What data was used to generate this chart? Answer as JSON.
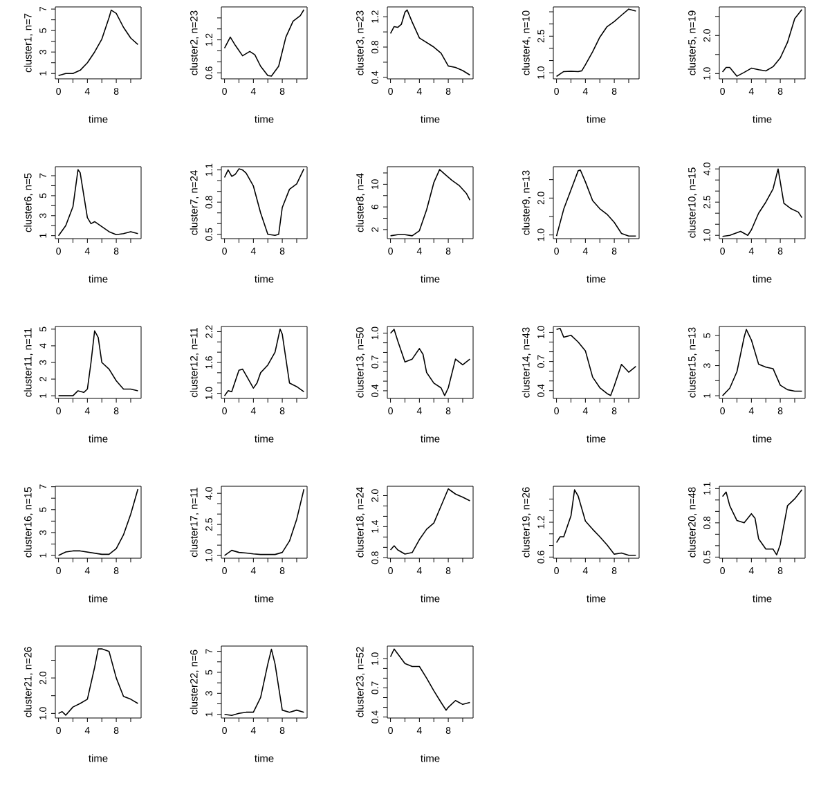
{
  "chart_data": [
    {
      "type": "line",
      "xlabel": "time",
      "ylabel": "cluster1, n=7",
      "color": "#000000",
      "xlim": [
        -0.44,
        11.44
      ],
      "ylim": [
        0.5,
        7.2
      ],
      "xticks": [
        0,
        {
          "value": 2,
          "label": null
        },
        4,
        {
          "value": 6,
          "label": null
        },
        8,
        {
          "value": 10,
          "label": null
        }
      ],
      "yticks": [
        1,
        {
          "value": 2,
          "label": null
        },
        3,
        {
          "value": 4,
          "label": null
        },
        5,
        {
          "value": 6,
          "label": null
        },
        7
      ],
      "x": [
        0,
        1,
        2,
        3,
        4,
        5,
        6,
        7,
        7.3,
        8,
        9,
        10,
        11
      ],
      "values": [
        0.8,
        1.0,
        1.0,
        1.3,
        2.0,
        3.0,
        4.2,
        6.2,
        6.9,
        6.6,
        5.3,
        4.3,
        3.7
      ]
    },
    {
      "type": "line",
      "xlabel": "time",
      "ylabel": "cluster2, n=23",
      "color": "#000000",
      "xlim": [
        -0.44,
        11.44
      ],
      "ylim": [
        0.49,
        1.8
      ],
      "xticks": [
        0,
        {
          "value": 2,
          "label": null
        },
        4,
        {
          "value": 6,
          "label": null
        },
        8,
        {
          "value": 10,
          "label": null
        }
      ],
      "yticks": [
        0.6,
        {
          "value": 0.8,
          "label": null
        },
        {
          "value": 1.0,
          "label": null
        },
        1.2,
        {
          "value": 1.4,
          "label": null
        },
        {
          "value": 1.6,
          "label": null
        }
      ],
      "x": [
        0,
        0.8,
        1.5,
        2.5,
        3.5,
        4.2,
        5,
        6,
        6.5,
        7.5,
        8.5,
        9.5,
        10.5,
        11
      ],
      "values": [
        1.05,
        1.25,
        1.1,
        0.91,
        0.99,
        0.93,
        0.72,
        0.55,
        0.54,
        0.72,
        1.25,
        1.54,
        1.64,
        1.75
      ]
    },
    {
      "type": "line",
      "xlabel": "time",
      "ylabel": "cluster3, n=23",
      "color": "#000000",
      "xlim": [
        -0.44,
        11.44
      ],
      "ylim": [
        0.38,
        1.33
      ],
      "xticks": [
        0,
        {
          "value": 2,
          "label": null
        },
        4,
        {
          "value": 6,
          "label": null
        },
        8,
        {
          "value": 10,
          "label": null
        }
      ],
      "yticks": [
        0.4,
        {
          "value": 0.6,
          "label": null
        },
        0.8,
        {
          "value": 1.0,
          "label": null
        },
        1.2
      ],
      "x": [
        0,
        0.5,
        1,
        1.5,
        2,
        2.3,
        3,
        4,
        5,
        6,
        7,
        8,
        9,
        10,
        11
      ],
      "values": [
        0.98,
        1.07,
        1.06,
        1.1,
        1.26,
        1.29,
        1.13,
        0.92,
        0.86,
        0.8,
        0.72,
        0.55,
        0.53,
        0.49,
        0.43
      ]
    },
    {
      "type": "line",
      "xlabel": "time",
      "ylabel": "cluster4, n=10",
      "color": "#000000",
      "xlim": [
        -0.44,
        11.44
      ],
      "ylim": [
        0.75,
        3.7
      ],
      "xticks": [
        0,
        {
          "value": 2,
          "label": null
        },
        4,
        {
          "value": 6,
          "label": null
        },
        8,
        {
          "value": 10,
          "label": null
        }
      ],
      "yticks": [
        {
          "value": 1,
          "label": "1.0"
        },
        {
          "value": 1.5,
          "label": null
        },
        {
          "value": 2.0,
          "label": null
        },
        2.5,
        {
          "value": 3.0,
          "label": null
        },
        {
          "value": 3.5,
          "label": null
        }
      ],
      "x": [
        0,
        0.5,
        1,
        2,
        3,
        3.5,
        4,
        5,
        6,
        7,
        8,
        9,
        10,
        11
      ],
      "values": [
        0.85,
        0.95,
        1.05,
        1.06,
        1.05,
        1.08,
        1.33,
        1.86,
        2.46,
        2.89,
        3.1,
        3.36,
        3.61,
        3.53
      ]
    },
    {
      "type": "line",
      "xlabel": "time",
      "ylabel": "cluster5, n=19",
      "color": "#000000",
      "xlim": [
        -0.44,
        11.44
      ],
      "ylim": [
        0.86,
        2.75
      ],
      "xticks": [
        0,
        {
          "value": 2,
          "label": null
        },
        4,
        {
          "value": 6,
          "label": null
        },
        8,
        {
          "value": 10,
          "label": null
        }
      ],
      "yticks": [
        {
          "value": 1,
          "label": "1.0"
        },
        {
          "value": 1.5,
          "label": null
        },
        {
          "value": 2,
          "label": "2.0"
        },
        {
          "value": 2.5,
          "label": null
        }
      ],
      "x": [
        0,
        0.5,
        1,
        2,
        3,
        4,
        5,
        6,
        7,
        8,
        9,
        10,
        11
      ],
      "values": [
        1.04,
        1.16,
        1.16,
        0.93,
        1.03,
        1.14,
        1.1,
        1.07,
        1.18,
        1.41,
        1.82,
        2.44,
        2.68
      ]
    },
    {
      "type": "line",
      "xlabel": "time",
      "ylabel": "cluster6, n=5",
      "color": "#000000",
      "xlim": [
        -0.44,
        11.44
      ],
      "ylim": [
        0.7,
        7.9
      ],
      "xticks": [
        0,
        {
          "value": 2,
          "label": null
        },
        4,
        {
          "value": 6,
          "label": null
        },
        8,
        {
          "value": 10,
          "label": null
        }
      ],
      "yticks": [
        1,
        {
          "value": 2,
          "label": null
        },
        3,
        {
          "value": 4,
          "label": null
        },
        5,
        {
          "value": 6,
          "label": null
        },
        7
      ],
      "x": [
        0,
        1,
        2,
        2.7,
        3,
        4,
        4.5,
        5,
        6,
        7,
        8,
        9,
        10,
        11
      ],
      "values": [
        1.0,
        2.0,
        3.9,
        7.6,
        7.3,
        2.8,
        2.2,
        2.4,
        1.9,
        1.4,
        1.1,
        1.2,
        1.4,
        1.2
      ]
    },
    {
      "type": "line",
      "xlabel": "time",
      "ylabel": "cluster7, n=24",
      "color": "#000000",
      "xlim": [
        -0.44,
        11.44
      ],
      "ylim": [
        0.46,
        1.13
      ],
      "xticks": [
        0,
        {
          "value": 2,
          "label": null
        },
        4,
        {
          "value": 6,
          "label": null
        },
        8,
        {
          "value": 10,
          "label": null
        }
      ],
      "yticks": [
        0.5,
        {
          "value": 0.6,
          "label": null
        },
        {
          "value": 0.7,
          "label": null
        },
        0.8,
        {
          "value": 0.9,
          "label": null
        },
        {
          "value": 1.0,
          "label": null
        },
        1.1
      ],
      "x": [
        0,
        0.5,
        1,
        1.5,
        2,
        2.5,
        3,
        4,
        5,
        6,
        7,
        7.5,
        8,
        9,
        10,
        11
      ],
      "values": [
        1.03,
        1.1,
        1.04,
        1.06,
        1.11,
        1.1,
        1.07,
        0.95,
        0.7,
        0.5,
        0.49,
        0.5,
        0.75,
        0.92,
        0.97,
        1.11
      ]
    },
    {
      "type": "line",
      "xlabel": "time",
      "ylabel": "cluster8, n=4",
      "color": "#000000",
      "xlim": [
        -0.44,
        11.44
      ],
      "ylim": [
        0.4,
        13.1
      ],
      "xticks": [
        0,
        {
          "value": 2,
          "label": null
        },
        4,
        {
          "value": 6,
          "label": null
        },
        8,
        {
          "value": 10,
          "label": null
        }
      ],
      "yticks": [
        2,
        {
          "value": 4,
          "label": null
        },
        6,
        {
          "value": 8,
          "label": null
        },
        10,
        {
          "value": 12,
          "label": null
        }
      ],
      "x": [
        0,
        1,
        2,
        3,
        4,
        5,
        6,
        6.8,
        7.5,
        8.5,
        9.5,
        10.5,
        11
      ],
      "values": [
        0.9,
        1.1,
        1.1,
        0.9,
        1.8,
        5.5,
        10.3,
        12.6,
        11.8,
        10.7,
        9.8,
        8.4,
        7.2
      ]
    },
    {
      "type": "line",
      "xlabel": "time",
      "ylabel": "cluster9, n=13",
      "color": "#000000",
      "xlim": [
        -0.44,
        11.44
      ],
      "ylim": [
        0.9,
        2.85
      ],
      "xticks": [
        0,
        {
          "value": 2,
          "label": null
        },
        4,
        {
          "value": 6,
          "label": null
        },
        8,
        {
          "value": 10,
          "label": null
        }
      ],
      "yticks": [
        {
          "value": 1,
          "label": "1.0"
        },
        {
          "value": 1.5,
          "label": null
        },
        {
          "value": 2,
          "label": "2.0"
        },
        {
          "value": 2.5,
          "label": null
        }
      ],
      "x": [
        0,
        1,
        2,
        3,
        3.3,
        4,
        5,
        6,
        7,
        8,
        9,
        10,
        11
      ],
      "values": [
        0.97,
        1.7,
        2.22,
        2.74,
        2.76,
        2.44,
        1.93,
        1.71,
        1.56,
        1.34,
        1.04,
        0.97,
        0.97
      ]
    },
    {
      "type": "line",
      "xlabel": "time",
      "ylabel": "cluster10, n=15",
      "color": "#000000",
      "xlim": [
        -0.44,
        11.44
      ],
      "ylim": [
        0.85,
        4.1
      ],
      "xticks": [
        0,
        {
          "value": 2,
          "label": null
        },
        4,
        {
          "value": 6,
          "label": null
        },
        8,
        {
          "value": 10,
          "label": null
        }
      ],
      "yticks": [
        {
          "value": 1,
          "label": "1.0"
        },
        {
          "value": 1.5,
          "label": null
        },
        {
          "value": 2.0,
          "label": null
        },
        2.5,
        {
          "value": 3.0,
          "label": null
        },
        {
          "value": 3.5,
          "label": null
        },
        {
          "value": 4,
          "label": "4.0"
        }
      ],
      "x": [
        0,
        1,
        2.5,
        3.5,
        4,
        5,
        6,
        7,
        7.7,
        8.5,
        9.5,
        10.5,
        11
      ],
      "values": [
        0.95,
        1.0,
        1.18,
        1.0,
        1.25,
        2.0,
        2.5,
        3.1,
        4.0,
        2.45,
        2.2,
        2.05,
        1.8
      ]
    },
    {
      "type": "line",
      "xlabel": "time",
      "ylabel": "cluster11, n=11",
      "color": "#000000",
      "xlim": [
        -0.44,
        11.44
      ],
      "ylim": [
        0.84,
        5.16
      ],
      "xticks": [
        0,
        {
          "value": 2,
          "label": null
        },
        4,
        {
          "value": 6,
          "label": null
        },
        8,
        {
          "value": 10,
          "label": null
        }
      ],
      "yticks": [
        1,
        2,
        3,
        4,
        5
      ],
      "x": [
        0,
        1,
        2,
        2.7,
        3.5,
        4,
        4.5,
        5,
        5.5,
        6,
        7,
        8,
        9,
        10,
        11
      ],
      "values": [
        1.0,
        1.0,
        1.0,
        1.3,
        1.2,
        1.4,
        3.0,
        4.9,
        4.5,
        3.0,
        2.6,
        1.9,
        1.4,
        1.4,
        1.3
      ]
    },
    {
      "type": "line",
      "xlabel": "time",
      "ylabel": "cluster12, n=11",
      "color": "#000000",
      "xlim": [
        -0.44,
        11.44
      ],
      "ylim": [
        0.9,
        2.3
      ],
      "xticks": [
        0,
        {
          "value": 2,
          "label": null
        },
        4,
        {
          "value": 6,
          "label": null
        },
        8,
        {
          "value": 10,
          "label": null
        }
      ],
      "yticks": [
        {
          "value": 1,
          "label": "1.0"
        },
        {
          "value": 1.2,
          "label": null
        },
        {
          "value": 1.4,
          "label": null
        },
        1.6,
        {
          "value": 1.8,
          "label": null
        },
        {
          "value": 2.0,
          "label": null
        },
        2.2
      ],
      "x": [
        0,
        0.5,
        1,
        2,
        2.5,
        3,
        4,
        4.5,
        5,
        6,
        7,
        7.7,
        8,
        9,
        10,
        11
      ],
      "values": [
        0.95,
        1.05,
        1.03,
        1.45,
        1.47,
        1.35,
        1.1,
        1.2,
        1.4,
        1.55,
        1.8,
        2.25,
        2.15,
        1.2,
        1.13,
        1.03
      ]
    },
    {
      "type": "line",
      "xlabel": "time",
      "ylabel": "cluster13, n=50",
      "color": "#000000",
      "xlim": [
        -0.44,
        11.44
      ],
      "ylim": [
        0.32,
        1.07
      ],
      "xticks": [
        0,
        {
          "value": 2,
          "label": null
        },
        4,
        {
          "value": 6,
          "label": null
        },
        8,
        {
          "value": 10,
          "label": null
        }
      ],
      "yticks": [
        0.4,
        {
          "value": 0.5,
          "label": null
        },
        {
          "value": 0.6,
          "label": null
        },
        0.7,
        {
          "value": 0.8,
          "label": null
        },
        {
          "value": 0.9,
          "label": null
        },
        {
          "value": 1,
          "label": "1.0"
        }
      ],
      "x": [
        0,
        0.5,
        1,
        2,
        3,
        4,
        4.5,
        5,
        6,
        7,
        7.5,
        8,
        9,
        10,
        11
      ],
      "values": [
        1.0,
        1.04,
        0.92,
        0.7,
        0.73,
        0.84,
        0.78,
        0.59,
        0.48,
        0.43,
        0.35,
        0.43,
        0.73,
        0.67,
        0.73
      ]
    },
    {
      "type": "line",
      "xlabel": "time",
      "ylabel": "cluster14, n=43",
      "color": "#000000",
      "xlim": [
        -0.44,
        11.44
      ],
      "ylim": [
        0.32,
        1.06
      ],
      "xticks": [
        0,
        {
          "value": 2,
          "label": null
        },
        4,
        {
          "value": 6,
          "label": null
        },
        8,
        {
          "value": 10,
          "label": null
        }
      ],
      "yticks": [
        0.4,
        {
          "value": 0.5,
          "label": null
        },
        {
          "value": 0.6,
          "label": null
        },
        0.7,
        {
          "value": 0.8,
          "label": null
        },
        {
          "value": 0.9,
          "label": null
        },
        {
          "value": 1,
          "label": "1.0"
        }
      ],
      "x": [
        0,
        0.5,
        1,
        2,
        3,
        4,
        5,
        6,
        7,
        7.5,
        8,
        9,
        10,
        11
      ],
      "values": [
        1.03,
        1.04,
        0.95,
        0.97,
        0.9,
        0.81,
        0.54,
        0.43,
        0.37,
        0.35,
        0.45,
        0.67,
        0.59,
        0.65
      ]
    },
    {
      "type": "line",
      "xlabel": "time",
      "ylabel": "cluster15, n=13",
      "color": "#000000",
      "xlim": [
        -0.44,
        11.44
      ],
      "ylim": [
        0.82,
        5.6
      ],
      "xticks": [
        0,
        {
          "value": 2,
          "label": null
        },
        4,
        {
          "value": 6,
          "label": null
        },
        8,
        {
          "value": 10,
          "label": null
        }
      ],
      "yticks": [
        1,
        {
          "value": 2,
          "label": null
        },
        3,
        {
          "value": 4,
          "label": null
        },
        5
      ],
      "x": [
        0,
        1,
        2,
        3,
        3.3,
        4,
        5,
        6,
        7,
        8,
        9,
        10,
        11
      ],
      "values": [
        1.0,
        1.5,
        2.6,
        4.9,
        5.4,
        4.7,
        3.1,
        2.9,
        2.8,
        1.7,
        1.4,
        1.3,
        1.3
      ]
    },
    {
      "type": "line",
      "xlabel": "time",
      "ylabel": "cluster16, n=15",
      "color": "#000000",
      "xlim": [
        -0.44,
        11.44
      ],
      "ylim": [
        0.76,
        7.04
      ],
      "xticks": [
        0,
        {
          "value": 2,
          "label": null
        },
        4,
        {
          "value": 6,
          "label": null
        },
        8,
        {
          "value": 10,
          "label": null
        }
      ],
      "yticks": [
        1,
        {
          "value": 2,
          "label": null
        },
        3,
        {
          "value": 4,
          "label": null
        },
        5,
        {
          "value": 6,
          "label": null
        },
        7
      ],
      "x": [
        0,
        1,
        2,
        3,
        4,
        5,
        6,
        7,
        8,
        9,
        10,
        11
      ],
      "values": [
        1.0,
        1.3,
        1.4,
        1.4,
        1.3,
        1.2,
        1.1,
        1.1,
        1.6,
        2.8,
        4.6,
        6.8
      ]
    },
    {
      "type": "line",
      "xlabel": "time",
      "ylabel": "cluster17, n=11",
      "color": "#000000",
      "xlim": [
        -0.44,
        11.44
      ],
      "ylim": [
        0.87,
        4.34
      ],
      "xticks": [
        0,
        {
          "value": 2,
          "label": null
        },
        4,
        {
          "value": 6,
          "label": null
        },
        8,
        {
          "value": 10,
          "label": null
        }
      ],
      "yticks": [
        {
          "value": 1,
          "label": "1.0"
        },
        {
          "value": 1.5,
          "label": null
        },
        {
          "value": 2.0,
          "label": null
        },
        2.5,
        {
          "value": 3.0,
          "label": null
        },
        {
          "value": 3.5,
          "label": null
        },
        {
          "value": 4,
          "label": "4.0"
        }
      ],
      "x": [
        0,
        1,
        2,
        3,
        4,
        5,
        6,
        7,
        8,
        9,
        10,
        11
      ],
      "values": [
        1.0,
        1.25,
        1.15,
        1.12,
        1.08,
        1.05,
        1.05,
        1.05,
        1.15,
        1.7,
        2.75,
        4.2
      ]
    },
    {
      "type": "line",
      "xlabel": "time",
      "ylabel": "cluster18, n=24",
      "color": "#000000",
      "xlim": [
        -0.44,
        11.44
      ],
      "ylim": [
        0.79,
        2.18
      ],
      "xticks": [
        0,
        {
          "value": 2,
          "label": null
        },
        4,
        {
          "value": 6,
          "label": null
        },
        8,
        {
          "value": 10,
          "label": null
        }
      ],
      "yticks": [
        0.8,
        {
          "value": 1.0,
          "label": null
        },
        {
          "value": 1.2,
          "label": null
        },
        1.4,
        {
          "value": 1.6,
          "label": null
        },
        {
          "value": 1.8,
          "label": null
        },
        {
          "value": 2,
          "label": "2.0"
        }
      ],
      "x": [
        0,
        0.5,
        1,
        2,
        3,
        4,
        5,
        6,
        7,
        8,
        9,
        10,
        11
      ],
      "values": [
        0.95,
        1.03,
        0.95,
        0.87,
        0.9,
        1.15,
        1.35,
        1.47,
        1.8,
        2.13,
        2.03,
        1.97,
        1.9
      ]
    },
    {
      "type": "line",
      "xlabel": "time",
      "ylabel": "cluster19, n=26",
      "color": "#000000",
      "xlim": [
        -0.44,
        11.44
      ],
      "ylim": [
        0.58,
        1.82
      ],
      "xticks": [
        0,
        {
          "value": 2,
          "label": null
        },
        4,
        {
          "value": 6,
          "label": null
        },
        8,
        {
          "value": 10,
          "label": null
        }
      ],
      "yticks": [
        0.6,
        {
          "value": 0.8,
          "label": null
        },
        {
          "value": 1.0,
          "label": null
        },
        1.2,
        {
          "value": 1.4,
          "label": null
        },
        {
          "value": 1.6,
          "label": null
        }
      ],
      "x": [
        0,
        0.5,
        1,
        2,
        2.5,
        3,
        4,
        5,
        6,
        7,
        8,
        9,
        10,
        11
      ],
      "values": [
        0.85,
        0.95,
        0.95,
        1.31,
        1.76,
        1.65,
        1.22,
        1.08,
        0.95,
        0.81,
        0.65,
        0.67,
        0.63,
        0.63
      ]
    },
    {
      "type": "line",
      "xlabel": "time",
      "ylabel": "cluster20, n=48",
      "color": "#000000",
      "xlim": [
        -0.44,
        11.44
      ],
      "ylim": [
        0.49,
        1.12
      ],
      "xticks": [
        0,
        {
          "value": 2,
          "label": null
        },
        4,
        {
          "value": 6,
          "label": null
        },
        8,
        {
          "value": 10,
          "label": null
        }
      ],
      "yticks": [
        0.5,
        {
          "value": 0.6,
          "label": null
        },
        {
          "value": 0.7,
          "label": null
        },
        0.8,
        {
          "value": 0.9,
          "label": null
        },
        {
          "value": 1.0,
          "label": null
        },
        1.1
      ],
      "x": [
        0,
        0.5,
        1,
        2,
        3,
        4,
        4.5,
        5,
        6,
        7,
        7.5,
        8,
        9,
        10,
        11
      ],
      "values": [
        1.03,
        1.07,
        0.95,
        0.82,
        0.8,
        0.88,
        0.84,
        0.66,
        0.57,
        0.57,
        0.52,
        0.61,
        0.95,
        1.01,
        1.09
      ]
    },
    {
      "type": "line",
      "xlabel": "time",
      "ylabel": "cluster21, n=26",
      "color": "#000000",
      "xlim": [
        -0.44,
        11.44
      ],
      "ylim": [
        0.87,
        2.9
      ],
      "xticks": [
        0,
        {
          "value": 2,
          "label": null
        },
        4,
        {
          "value": 6,
          "label": null
        },
        8,
        {
          "value": 10,
          "label": null
        }
      ],
      "yticks": [
        {
          "value": 1,
          "label": "1.0"
        },
        {
          "value": 1.5,
          "label": null
        },
        {
          "value": 2,
          "label": "2.0"
        },
        {
          "value": 2.5,
          "label": null
        }
      ],
      "x": [
        0,
        0.5,
        1,
        2,
        3,
        4,
        5,
        5.5,
        6,
        7,
        8,
        9,
        10,
        11
      ],
      "values": [
        1.0,
        1.05,
        0.95,
        1.18,
        1.28,
        1.4,
        2.3,
        2.82,
        2.82,
        2.75,
        2.0,
        1.48,
        1.4,
        1.28
      ]
    },
    {
      "type": "line",
      "xlabel": "time",
      "ylabel": "cluster22, n=6",
      "color": "#000000",
      "xlim": [
        -0.44,
        11.44
      ],
      "ylim": [
        0.65,
        7.5
      ],
      "xticks": [
        0,
        {
          "value": 2,
          "label": null
        },
        4,
        {
          "value": 6,
          "label": null
        },
        8,
        {
          "value": 10,
          "label": null
        }
      ],
      "yticks": [
        1,
        {
          "value": 2,
          "label": null
        },
        3,
        {
          "value": 4,
          "label": null
        },
        5,
        {
          "value": 6,
          "label": null
        },
        7
      ],
      "x": [
        0,
        1,
        2,
        3,
        4,
        5,
        6,
        6.5,
        7,
        8,
        9,
        10,
        11
      ],
      "values": [
        1.0,
        0.9,
        1.1,
        1.2,
        1.2,
        2.6,
        5.8,
        7.2,
        5.8,
        1.4,
        1.2,
        1.4,
        1.2
      ]
    },
    {
      "type": "line",
      "xlabel": "time",
      "ylabel": "cluster23, n=52",
      "color": "#000000",
      "xlim": [
        -0.44,
        11.44
      ],
      "ylim": [
        0.39,
        1.13
      ],
      "xticks": [
        0,
        {
          "value": 2,
          "label": null
        },
        4,
        {
          "value": 6,
          "label": null
        },
        8,
        {
          "value": 10,
          "label": null
        }
      ],
      "yticks": [
        0.4,
        {
          "value": 0.5,
          "label": null
        },
        {
          "value": 0.6,
          "label": null
        },
        0.7,
        {
          "value": 0.8,
          "label": null
        },
        {
          "value": 0.9,
          "label": null
        },
        {
          "value": 1,
          "label": "1.0"
        }
      ],
      "x": [
        0,
        0.5,
        1,
        2,
        3,
        4,
        5,
        6,
        7,
        7.7,
        8,
        9,
        10,
        11
      ],
      "values": [
        1.02,
        1.1,
        1.05,
        0.95,
        0.92,
        0.92,
        0.8,
        0.67,
        0.55,
        0.47,
        0.5,
        0.57,
        0.53,
        0.55
      ]
    }
  ]
}
